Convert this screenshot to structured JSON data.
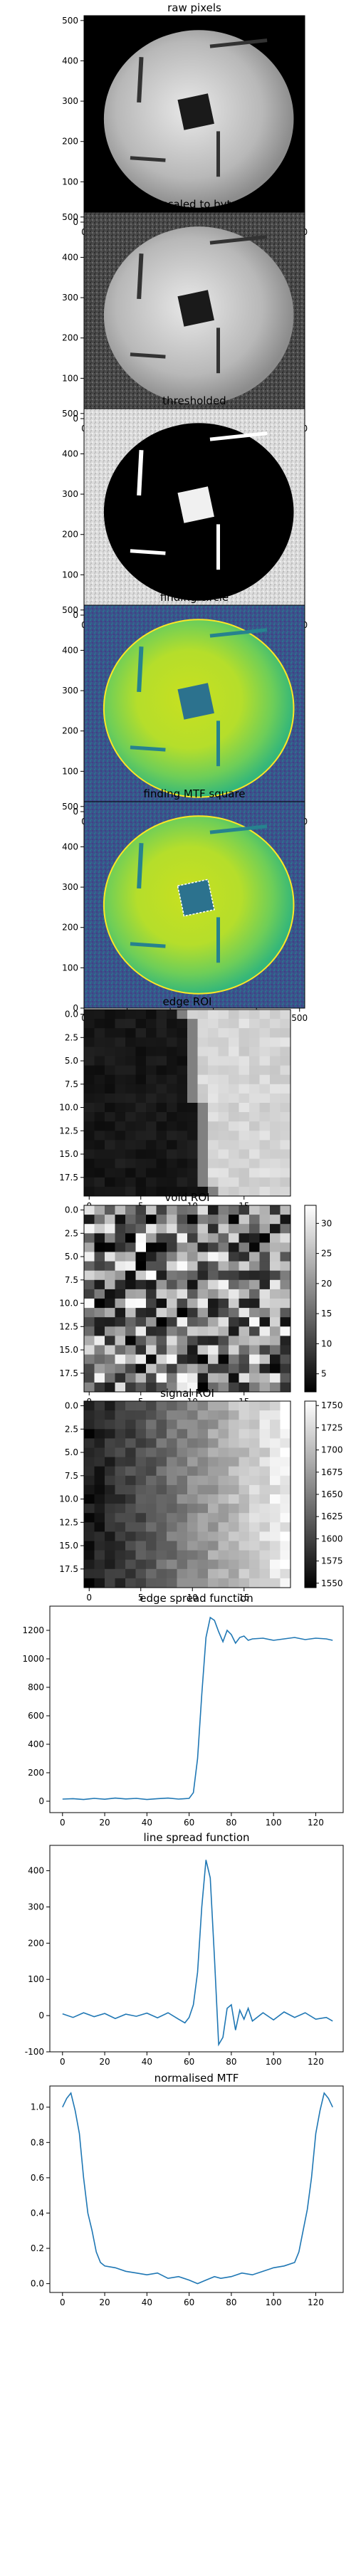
{
  "chart_data": [
    {
      "type": "image",
      "title": "raw pixels",
      "content": "phantom disc with square MTF block and three slanted rods, black background",
      "xticks": [
        "0",
        "100",
        "200",
        "300",
        "400",
        "500"
      ],
      "yticks": [
        "0",
        "100",
        "200",
        "300",
        "400",
        "500"
      ],
      "xlim": [
        0,
        512
      ],
      "ylim": [
        512,
        0
      ],
      "colormap": "gray"
    },
    {
      "type": "image",
      "title": "rescaled to byte",
      "content": "same phantom, noisy background after byte rescale",
      "xticks": [
        "0",
        "100",
        "200",
        "300",
        "400",
        "500"
      ],
      "yticks": [
        "0",
        "100",
        "200",
        "300",
        "400",
        "500"
      ],
      "xlim": [
        0,
        512
      ],
      "ylim": [
        512,
        0
      ],
      "colormap": "gray"
    },
    {
      "type": "image",
      "title": "thresholded",
      "content": "inverted threshold: disc black, background light grey noise, square white",
      "xticks": [
        "0",
        "100",
        "200",
        "300",
        "400",
        "500"
      ],
      "yticks": [
        "0",
        "100",
        "200",
        "300",
        "400",
        "500"
      ],
      "xlim": [
        0,
        512
      ],
      "ylim": [
        512,
        0
      ],
      "colormap": "gray"
    },
    {
      "type": "image",
      "title": "finding circle",
      "content": "viridis display with detected circle outline",
      "xticks": [
        "0",
        "100",
        "200",
        "300",
        "400",
        "500"
      ],
      "yticks": [
        "0",
        "100",
        "200",
        "300",
        "400",
        "500"
      ],
      "xlim": [
        0,
        512
      ],
      "ylim": [
        512,
        0
      ],
      "colormap": "viridis"
    },
    {
      "type": "image",
      "title": "finding MTF square",
      "content": "viridis display with dashed outline around square",
      "xticks": [
        "0",
        "100",
        "200",
        "300",
        "400",
        "500"
      ],
      "yticks": [
        "0",
        "100",
        "200",
        "300",
        "400",
        "500"
      ],
      "xlim": [
        0,
        512
      ],
      "ylim": [
        512,
        0
      ],
      "colormap": "viridis"
    },
    {
      "type": "heatmap",
      "title": "edge ROI",
      "size": [
        20,
        20
      ],
      "xticks": [
        "0",
        "5",
        "10",
        "15"
      ],
      "yticks": [
        "0.0",
        "2.5",
        "5.0",
        "7.5",
        "10.0",
        "12.5",
        "15.0",
        "17.5"
      ],
      "colormap": "gray",
      "colorbar": false
    },
    {
      "type": "heatmap",
      "title": "void ROI",
      "size": [
        20,
        20
      ],
      "xticks": [
        "0",
        "5",
        "10",
        "15"
      ],
      "yticks": [
        "0.0",
        "2.5",
        "5.0",
        "7.5",
        "10.0",
        "12.5",
        "15.0",
        "17.5"
      ],
      "colormap": "gray",
      "colorbar": true,
      "colorbar_range": [
        2,
        33
      ],
      "colorbar_ticks": [
        "5",
        "10",
        "15",
        "20",
        "25",
        "30"
      ]
    },
    {
      "type": "heatmap",
      "title": "signal ROI",
      "size": [
        20,
        20
      ],
      "xticks": [
        "0",
        "5",
        "10",
        "15"
      ],
      "yticks": [
        "0.0",
        "2.5",
        "5.0",
        "7.5",
        "10.0",
        "12.5",
        "15.0",
        "17.5"
      ],
      "colormap": "gray",
      "colorbar": true,
      "colorbar_range": [
        1545,
        1755
      ],
      "colorbar_ticks": [
        "1550",
        "1575",
        "1600",
        "1625",
        "1650",
        "1675",
        "1700",
        "1725",
        "1750"
      ]
    },
    {
      "type": "line",
      "title": "edge spread function",
      "xlim": [
        -6,
        133
      ],
      "ylim": [
        -80,
        1370
      ],
      "xticks": [
        "0",
        "20",
        "40",
        "60",
        "80",
        "100",
        "120"
      ],
      "yticks": [
        "0",
        "200",
        "400",
        "600",
        "800",
        "1000",
        "1200"
      ],
      "x": [
        0,
        5,
        10,
        15,
        20,
        25,
        30,
        35,
        40,
        45,
        50,
        55,
        60,
        62,
        64,
        66,
        68,
        70,
        72,
        74,
        76,
        78,
        80,
        82,
        84,
        86,
        88,
        90,
        95,
        100,
        105,
        110,
        115,
        120,
        125,
        128
      ],
      "y": [
        15,
        18,
        12,
        20,
        14,
        22,
        16,
        20,
        12,
        18,
        22,
        15,
        20,
        60,
        300,
        750,
        1150,
        1290,
        1270,
        1190,
        1120,
        1200,
        1170,
        1110,
        1150,
        1160,
        1130,
        1140,
        1145,
        1130,
        1140,
        1150,
        1135,
        1145,
        1140,
        1130
      ],
      "color": "#1f77b4"
    },
    {
      "type": "line",
      "title": "line spread function",
      "xlim": [
        -6,
        133
      ],
      "ylim": [
        -100,
        470
      ],
      "xticks": [
        "0",
        "20",
        "40",
        "60",
        "80",
        "100",
        "120"
      ],
      "yticks": [
        "-100",
        "0",
        "100",
        "200",
        "300",
        "400"
      ],
      "x": [
        0,
        5,
        10,
        15,
        20,
        25,
        30,
        35,
        40,
        45,
        50,
        55,
        58,
        60,
        62,
        64,
        66,
        68,
        70,
        72,
        74,
        76,
        78,
        80,
        82,
        84,
        86,
        88,
        90,
        95,
        100,
        105,
        110,
        115,
        120,
        125,
        128
      ],
      "y": [
        5,
        -5,
        8,
        -3,
        6,
        -8,
        4,
        -2,
        7,
        -6,
        8,
        -10,
        -20,
        -5,
        30,
        120,
        300,
        430,
        380,
        160,
        -80,
        -60,
        20,
        30,
        -40,
        15,
        -10,
        20,
        -15,
        8,
        -12,
        10,
        -5,
        8,
        -10,
        -5,
        -15
      ],
      "color": "#1f77b4"
    },
    {
      "type": "line",
      "title": "normalised MTF",
      "xlim": [
        -6,
        133
      ],
      "ylim": [
        -0.05,
        1.12
      ],
      "xticks": [
        "0",
        "20",
        "40",
        "60",
        "80",
        "100",
        "120"
      ],
      "yticks": [
        "0.0",
        "0.2",
        "0.4",
        "0.6",
        "0.8",
        "1.0"
      ],
      "x": [
        0,
        2,
        4,
        6,
        8,
        10,
        12,
        14,
        16,
        18,
        20,
        25,
        30,
        35,
        40,
        45,
        50,
        55,
        60,
        64,
        68,
        72,
        75,
        80,
        85,
        90,
        95,
        100,
        105,
        110,
        112,
        114,
        116,
        118,
        120,
        122,
        124,
        126,
        128
      ],
      "y": [
        1.0,
        1.05,
        1.08,
        0.98,
        0.85,
        0.6,
        0.4,
        0.3,
        0.18,
        0.12,
        0.1,
        0.09,
        0.07,
        0.06,
        0.05,
        0.06,
        0.03,
        0.04,
        0.02,
        0.0,
        0.02,
        0.04,
        0.03,
        0.04,
        0.06,
        0.05,
        0.07,
        0.09,
        0.1,
        0.12,
        0.18,
        0.3,
        0.42,
        0.6,
        0.85,
        0.98,
        1.08,
        1.05,
        1.0
      ],
      "color": "#1f77b4"
    }
  ]
}
